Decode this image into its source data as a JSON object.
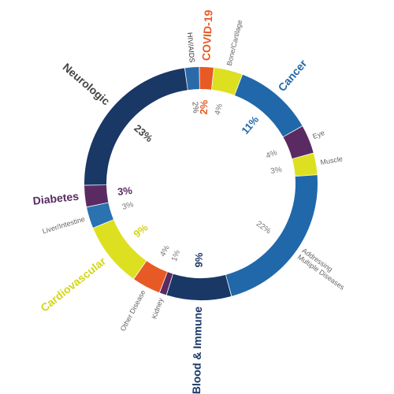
{
  "chart_data": {
    "type": "pie",
    "style": "donut",
    "values_unit": "%",
    "segments": [
      {
        "label": "HIV/AIDS",
        "value": 2,
        "value_label": "2%",
        "color": "#2b6aa8",
        "label_color": "#333333",
        "value_color": "#555555",
        "label_emphasis": false
      },
      {
        "label": "COVID-19",
        "value": 2,
        "value_label": "2%",
        "color": "#e85a25",
        "label_color": "#e85a25",
        "value_color": "#e85a25",
        "label_emphasis": true
      },
      {
        "label": "Bone/Cartilage",
        "value": 4,
        "value_label": "4%",
        "color": "#dde021",
        "label_color": "#666666",
        "value_color": "#777777",
        "label_emphasis": false
      },
      {
        "label": "Cancer",
        "value": 11,
        "value_label": "11%",
        "color": "#2068aa",
        "label_color": "#2068aa",
        "value_color": "#2068aa",
        "label_emphasis": true
      },
      {
        "label": "Eye",
        "value": 4,
        "value_label": "4%",
        "color": "#5a2b63",
        "label_color": "#666666",
        "value_color": "#777777",
        "label_emphasis": false
      },
      {
        "label": "Muscle",
        "value": 3,
        "value_label": "3%",
        "color": "#dde021",
        "label_color": "#666666",
        "value_color": "#777777",
        "label_emphasis": false
      },
      {
        "label": "Addressing Multiple Diseases",
        "value": 22,
        "value_label": "22%",
        "color": "#2068aa",
        "label_color": "#666666",
        "value_color": "#777777",
        "label_emphasis": false
      },
      {
        "label": "Blood & Immune",
        "value": 9,
        "value_label": "9%",
        "color": "#1a3866",
        "label_color": "#1a3866",
        "value_color": "#1a3866",
        "label_emphasis": true
      },
      {
        "label": "Kidney",
        "value": 1,
        "value_label": "1%",
        "color": "#5a2b63",
        "label_color": "#666666",
        "value_color": "#777777",
        "label_emphasis": false
      },
      {
        "label": "Other Disease",
        "value": 4,
        "value_label": "4%",
        "color": "#e85a25",
        "label_color": "#666666",
        "value_color": "#777777",
        "label_emphasis": false
      },
      {
        "label": "Cardiovascular",
        "value": 9,
        "value_label": "9%",
        "color": "#dde021",
        "label_color": "#d4d41a",
        "value_color": "#d4d41a",
        "label_emphasis": true
      },
      {
        "label": "Liver/Intestine",
        "value": 3,
        "value_label": "3%",
        "color": "#2a72b0",
        "label_color": "#666666",
        "value_color": "#777777",
        "label_emphasis": false
      },
      {
        "label": "Diabetes",
        "value": 3,
        "value_label": "3%",
        "color": "#5a2b63",
        "label_color": "#5a2b63",
        "value_color": "#5a2b63",
        "label_emphasis": true
      },
      {
        "label": "Neurologic",
        "value": 23,
        "value_label": "23%",
        "color": "#1a3866",
        "label_color": "#444444",
        "value_color": "#444444",
        "label_emphasis": true
      }
    ]
  }
}
